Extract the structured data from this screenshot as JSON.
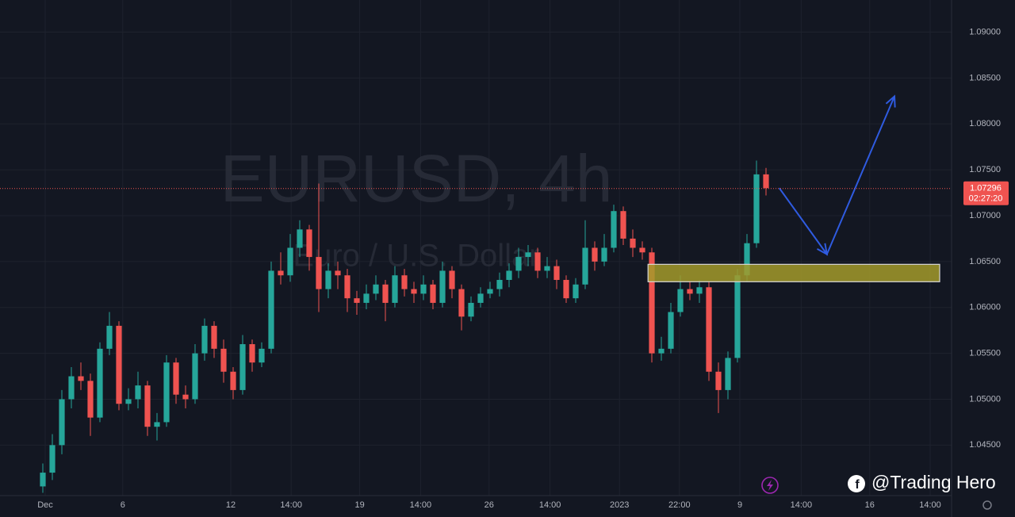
{
  "chart_data": {
    "type": "candlestick",
    "title": "EURUSD, 4h",
    "subtitle": "Euro / U.S. Dollar",
    "x": [
      4.5,
      5.5,
      6.5,
      7.5,
      8.5,
      9.5,
      10.5,
      11.5,
      12.5,
      13.5,
      14.5,
      15.5,
      16.5,
      17.5,
      18.5,
      19.5,
      20.5,
      21.5,
      22.5,
      23.5,
      24.5,
      25.5,
      26.5,
      27.5,
      28.5,
      29.5,
      30.5,
      31.5,
      32.5,
      33.5,
      34.5,
      35.5,
      36.5,
      37.5,
      38.5,
      39.5,
      40.5,
      41.5,
      42.5,
      43.5,
      44.5,
      45.5,
      46.5,
      47.5,
      48.5,
      49.5,
      50.5,
      51.5,
      52.5,
      53.5,
      54.5,
      55.5,
      56.5,
      57.5,
      58.5,
      59.5,
      60.5,
      61.5,
      62.5,
      63.5,
      64.5,
      65.5,
      66.5,
      67.5,
      68.5,
      69.5,
      70.5,
      71.5,
      72.5,
      73.5,
      74.5,
      75.5,
      76.5,
      77.5,
      78.5,
      79.5,
      80.5
    ],
    "open": [
      1.0405,
      1.042,
      1.045,
      1.05,
      1.0525,
      1.052,
      1.048,
      1.0555,
      1.058,
      1.0495,
      1.05,
      1.0515,
      1.047,
      1.0475,
      1.054,
      1.0505,
      1.05,
      1.055,
      1.058,
      1.0555,
      1.053,
      1.051,
      1.056,
      1.054,
      1.0555,
      1.064,
      1.0635,
      1.0665,
      1.0685,
      1.0655,
      1.062,
      1.064,
      1.0635,
      1.061,
      1.0605,
      1.0615,
      1.0625,
      1.0605,
      1.0635,
      1.062,
      1.0615,
      1.0625,
      1.0605,
      1.064,
      1.062,
      1.059,
      1.0605,
      1.0615,
      1.062,
      1.063,
      1.064,
      1.0655,
      1.066,
      1.064,
      1.0645,
      1.063,
      1.061,
      1.0625,
      1.0665,
      1.065,
      1.0665,
      1.0705,
      1.0675,
      1.0665,
      1.066,
      1.055,
      1.0555,
      1.0595,
      1.062,
      1.0615,
      1.0622,
      1.053,
      1.051,
      1.0545,
      1.0635,
      1.067,
      1.0745
    ],
    "high": [
      1.043,
      1.0462,
      1.051,
      1.0535,
      1.054,
      1.0528,
      1.0562,
      1.0595,
      1.0585,
      1.0512,
      1.053,
      1.052,
      1.0485,
      1.0548,
      1.0545,
      1.0515,
      1.056,
      1.0588,
      1.0585,
      1.0565,
      1.0535,
      1.057,
      1.0565,
      1.0562,
      1.065,
      1.066,
      1.068,
      1.0695,
      1.069,
      1.0735,
      1.0648,
      1.065,
      1.0642,
      1.0618,
      1.0625,
      1.0635,
      1.063,
      1.0645,
      1.0642,
      1.0628,
      1.0635,
      1.063,
      1.065,
      1.0645,
      1.0625,
      1.0612,
      1.0622,
      1.0628,
      1.0638,
      1.0648,
      1.0665,
      1.0668,
      1.0665,
      1.0655,
      1.0652,
      1.0635,
      1.0632,
      1.0695,
      1.0672,
      1.068,
      1.0712,
      1.071,
      1.0685,
      1.0672,
      1.0665,
      1.0568,
      1.0605,
      1.0635,
      1.0628,
      1.063,
      1.0628,
      1.054,
      1.0552,
      1.0642,
      1.068,
      1.076,
      1.0752
    ],
    "low": [
      1.0398,
      1.0412,
      1.044,
      1.049,
      1.051,
      1.046,
      1.0475,
      1.0548,
      1.0488,
      1.0488,
      1.049,
      1.046,
      1.0455,
      1.047,
      1.0495,
      1.049,
      1.0495,
      1.0542,
      1.0545,
      1.0518,
      1.05,
      1.0505,
      1.053,
      1.0535,
      1.055,
      1.0625,
      1.0628,
      1.0655,
      1.064,
      1.0595,
      1.061,
      1.062,
      1.0595,
      1.0592,
      1.0598,
      1.0608,
      1.0585,
      1.06,
      1.0612,
      1.0605,
      1.0608,
      1.0598,
      1.06,
      1.061,
      1.0575,
      1.0585,
      1.06,
      1.061,
      1.0612,
      1.0622,
      1.0632,
      1.0645,
      1.0632,
      1.0632,
      1.062,
      1.0605,
      1.0605,
      1.062,
      1.064,
      1.0645,
      1.066,
      1.0668,
      1.0655,
      1.0652,
      1.054,
      1.0542,
      1.055,
      1.059,
      1.0608,
      1.0605,
      1.052,
      1.0485,
      1.05,
      1.054,
      1.0628,
      1.0665,
      1.0722
    ],
    "close": [
      1.042,
      1.045,
      1.05,
      1.0525,
      1.052,
      1.048,
      1.0555,
      1.058,
      1.0495,
      1.05,
      1.0515,
      1.047,
      1.0475,
      1.054,
      1.0505,
      1.05,
      1.055,
      1.058,
      1.0555,
      1.053,
      1.051,
      1.056,
      1.054,
      1.0555,
      1.064,
      1.0635,
      1.0665,
      1.0685,
      1.0655,
      1.062,
      1.064,
      1.0635,
      1.061,
      1.0605,
      1.0615,
      1.0625,
      1.0605,
      1.0635,
      1.062,
      1.0615,
      1.0625,
      1.0605,
      1.064,
      1.062,
      1.059,
      1.0605,
      1.0615,
      1.062,
      1.063,
      1.064,
      1.0655,
      1.066,
      1.064,
      1.0645,
      1.063,
      1.061,
      1.0625,
      1.0665,
      1.065,
      1.0665,
      1.0705,
      1.0675,
      1.0665,
      1.066,
      1.055,
      1.0555,
      1.0595,
      1.062,
      1.0615,
      1.0622,
      1.053,
      1.051,
      1.0545,
      1.0635,
      1.067,
      1.0745,
      1.073
    ],
    "up_color": "#26a69a",
    "down_color": "#ef5350",
    "xlim": [
      0,
      100
    ],
    "ylim": [
      1.0395,
      1.0935
    ],
    "yticks": [
      {
        "value": 1.045,
        "label": "1.04500"
      },
      {
        "value": 1.05,
        "label": "1.05000"
      },
      {
        "value": 1.055,
        "label": "1.05500"
      },
      {
        "value": 1.06,
        "label": "1.06000"
      },
      {
        "value": 1.065,
        "label": "1.06500"
      },
      {
        "value": 1.07,
        "label": "1.07000"
      },
      {
        "value": 1.075,
        "label": "1.07500"
      },
      {
        "value": 1.08,
        "label": "1.08000"
      },
      {
        "value": 1.085,
        "label": "1.08500"
      },
      {
        "value": 1.09,
        "label": "1.09000"
      }
    ],
    "xticks": [
      {
        "value": 4.75,
        "label": "Dec"
      },
      {
        "value": 12.9,
        "label": "6"
      },
      {
        "value": 24.25,
        "label": "12"
      },
      {
        "value": 30.6,
        "label": "14:00"
      },
      {
        "value": 37.8,
        "label": "19"
      },
      {
        "value": 44.2,
        "label": "14:00"
      },
      {
        "value": 51.4,
        "label": "26"
      },
      {
        "value": 57.8,
        "label": "14:00"
      },
      {
        "value": 65.1,
        "label": "2023"
      },
      {
        "value": 71.4,
        "label": "22:00"
      },
      {
        "value": 77.75,
        "label": "9"
      },
      {
        "value": 84.2,
        "label": "14:00"
      },
      {
        "value": 91.4,
        "label": "16"
      },
      {
        "value": 97.75,
        "label": "14:00"
      }
    ],
    "grid": true,
    "last_price": 1.07296,
    "countdown": "02:27:20",
    "zone": {
      "x": [
        68.1,
        98.75
      ],
      "y": [
        1.0628,
        1.0647
      ],
      "color": "#a39a2a"
    },
    "projection": {
      "x": [
        81.9,
        86.9,
        94
      ],
      "y": [
        1.073,
        1.0658,
        1.083
      ],
      "color": "#2f5be0"
    },
    "watermark": "@Trading Hero"
  }
}
